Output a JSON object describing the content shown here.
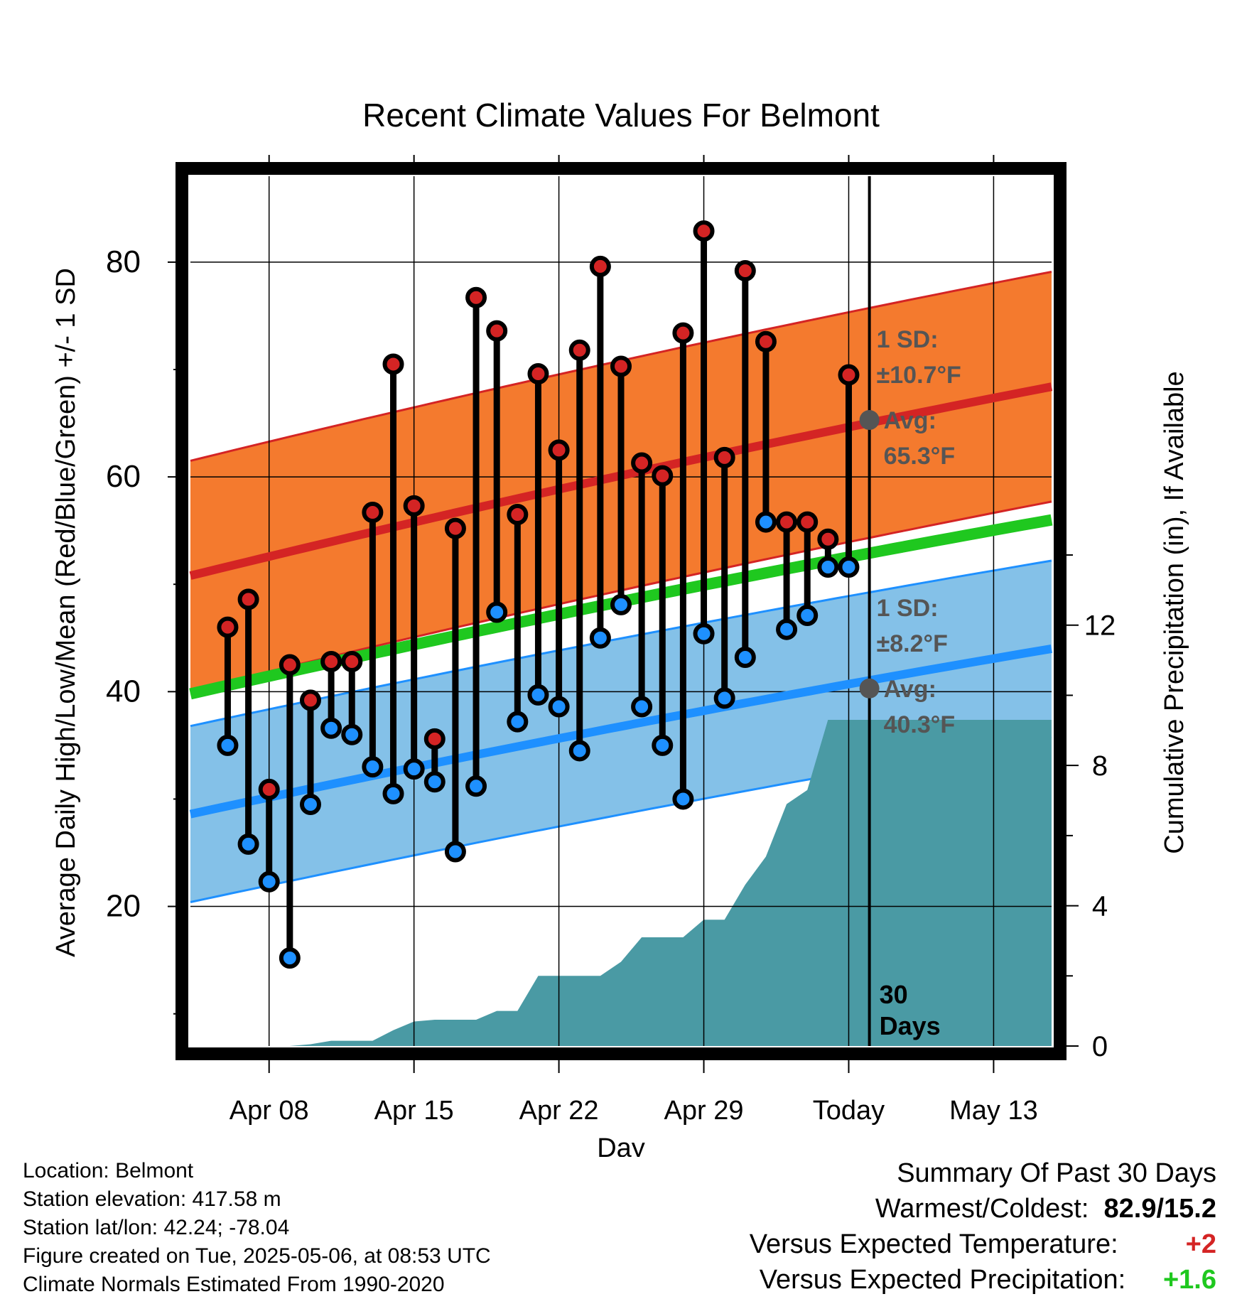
{
  "chart_data": {
    "type": "line",
    "title": "Recent Climate Values For Belmont",
    "xlabel": "Day",
    "ylabel": "Average Daily High/Low/Mean (Red/Blue/Green) +/- 1 SD",
    "y2label": "Cumulative Precipitation (in), If Available",
    "x_ticks": [
      "Apr 08",
      "Apr 15",
      "Apr 22",
      "Apr 29",
      "Today",
      "May 13"
    ],
    "x_range_days": [
      4.2,
      45.8
    ],
    "ylim": [
      7,
      88
    ],
    "y_ticks": [
      20,
      40,
      60,
      80
    ],
    "y2lim": [
      0,
      24.8
    ],
    "y2_ticks": [
      0,
      4,
      8,
      12
    ],
    "grid": true,
    "today_day": 37,
    "today_label": "30 Days",
    "normals": {
      "high": {
        "name": "High",
        "color": "#d42424",
        "band_color": "#f47a2e",
        "band_edge_color": "#d42424",
        "mean_start": 50.8,
        "mean_end": 68.4,
        "sd": 10.7,
        "annotation_sd": "1 SD:",
        "annotation_sd_value": "±10.7°F",
        "annotation_avg": "Avg:",
        "annotation_avg_value": "65.3°F",
        "today_avg": 65.3
      },
      "low": {
        "name": "Low",
        "color": "#1e90ff",
        "band_color": "#84c1e8",
        "band_edge_color": "#1e90ff",
        "mean_start": 28.6,
        "mean_end": 44.0,
        "sd": 8.2,
        "annotation_sd": "1 SD:",
        "annotation_sd_value": "±8.2°F",
        "annotation_avg": "Avg:",
        "annotation_avg_value": "40.3°F",
        "today_avg": 40.3
      },
      "mean": {
        "name": "Mean",
        "color": "#1fc81f",
        "mean_start": 39.8,
        "mean_end": 56.0
      }
    },
    "daily": {
      "days": [
        6,
        7,
        8,
        9,
        10,
        11,
        12,
        13,
        14,
        15,
        16,
        17,
        18,
        19,
        20,
        21,
        22,
        23,
        24,
        25,
        26,
        27,
        28,
        29,
        30,
        31,
        32,
        33,
        34,
        35,
        36
      ],
      "highs": [
        46.0,
        48.6,
        30.9,
        42.5,
        39.2,
        42.8,
        42.8,
        56.7,
        70.5,
        57.3,
        35.6,
        55.2,
        76.7,
        73.6,
        56.5,
        69.6,
        62.5,
        71.8,
        79.6,
        70.3,
        61.3,
        60.1,
        73.4,
        82.9,
        61.8,
        79.2,
        72.6,
        55.8,
        55.8,
        54.2,
        69.5
      ],
      "lows": [
        35.0,
        25.8,
        22.3,
        15.2,
        29.5,
        36.6,
        36.0,
        33.0,
        30.5,
        32.8,
        31.6,
        25.1,
        31.2,
        47.4,
        37.2,
        39.7,
        38.6,
        34.5,
        45.0,
        48.1,
        38.6,
        35.0,
        30.0,
        45.4,
        39.4,
        43.2,
        55.8,
        45.8,
        47.1,
        51.6,
        51.6
      ]
    },
    "precipitation": {
      "color": "#4a9aa4",
      "days": [
        4.2,
        6,
        7,
        8,
        9,
        10,
        11,
        12,
        13,
        14,
        15,
        16,
        17,
        18,
        19,
        20,
        21,
        22,
        23,
        24,
        25,
        26,
        27,
        28,
        29,
        30,
        31,
        32,
        33,
        34,
        35,
        36,
        37,
        45.8
      ],
      "cumulative_in": [
        0,
        0,
        0,
        0,
        0,
        0.05,
        0.15,
        0.15,
        0.15,
        0.45,
        0.7,
        0.75,
        0.75,
        0.75,
        1.0,
        1.0,
        2.0,
        2.0,
        2.0,
        2.0,
        2.4,
        3.1,
        3.1,
        3.1,
        3.6,
        3.6,
        4.6,
        5.4,
        6.9,
        7.3,
        9.3,
        9.3,
        9.3,
        9.3
      ]
    }
  },
  "footer": {
    "location": "Location: Belmont",
    "elevation": "Station elevation: 417.58 m",
    "latlon": "Station lat/lon: 42.24; -78.04",
    "created": "Figure created on Tue, 2025-05-06, at 08:53 UTC",
    "normals": "Climate Normals Estimated From 1990-2020"
  },
  "summary": {
    "title": "Summary Of Past 30 Days",
    "warm_cold_label": "Warmest/Coldest:",
    "warm_cold_value": "82.9/15.2",
    "temp_label": "Versus Expected Temperature:",
    "temp_value": "+2",
    "temp_color": "#d42424",
    "precip_label": "Versus Expected Precipitation:",
    "precip_value": "+1.6",
    "precip_color": "#1fc81f"
  }
}
